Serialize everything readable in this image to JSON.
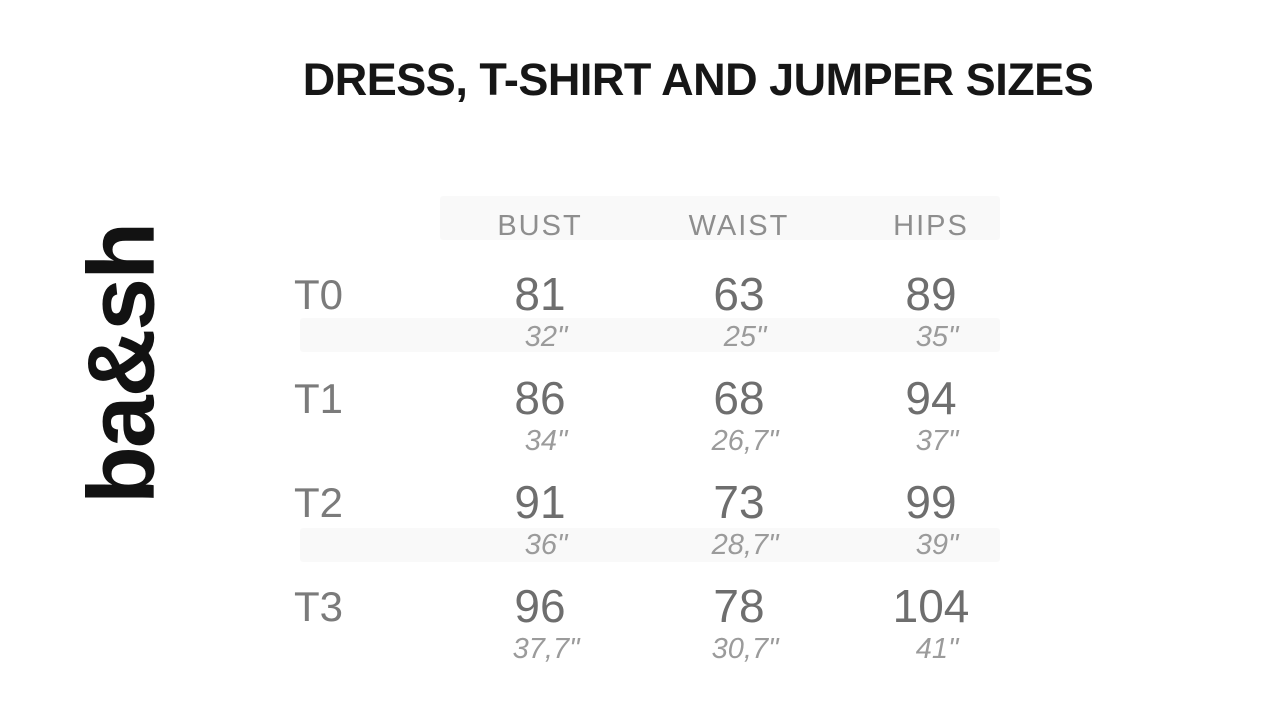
{
  "brand": {
    "logo_text": "ba&sh"
  },
  "title": "DRESS, T-SHIRT AND JUMPER SIZES",
  "colors": {
    "background": "#ffffff",
    "title_text": "#161616",
    "logo_text": "#121212",
    "header_text": "#8e8e8e",
    "size_label_text": "#7b7b7b",
    "cm_value_text": "#6e6e6e",
    "inch_value_text": "#9b9b9b"
  },
  "table": {
    "columns": [
      "BUST",
      "WAIST",
      "HIPS"
    ],
    "rows": [
      {
        "size": "T0",
        "cells": [
          {
            "cm": "81",
            "in": "32\""
          },
          {
            "cm": "63",
            "in": "25\""
          },
          {
            "cm": "89",
            "in": "35\""
          }
        ]
      },
      {
        "size": "T1",
        "cells": [
          {
            "cm": "86",
            "in": "34\""
          },
          {
            "cm": "68",
            "in": "26,7\""
          },
          {
            "cm": "94",
            "in": "37\""
          }
        ]
      },
      {
        "size": "T2",
        "cells": [
          {
            "cm": "91",
            "in": "36\""
          },
          {
            "cm": "73",
            "in": "28,7\""
          },
          {
            "cm": "99",
            "in": "39\""
          }
        ]
      },
      {
        "size": "T3",
        "cells": [
          {
            "cm": "96",
            "in": "37,7\""
          },
          {
            "cm": "78",
            "in": "30,7\""
          },
          {
            "cm": "104",
            "in": "41\""
          }
        ]
      }
    ]
  }
}
